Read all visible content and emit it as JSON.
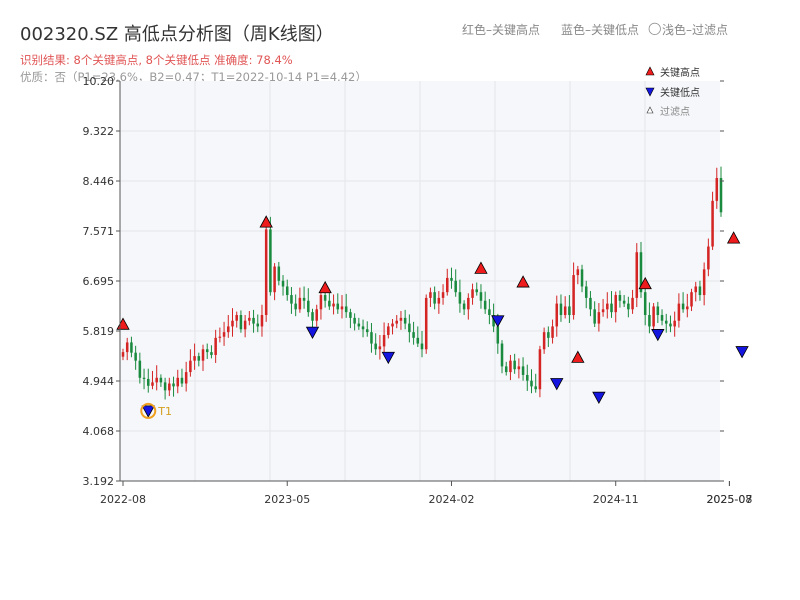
{
  "header": {
    "title": "002320.SZ 高低点分析图（周K线图）",
    "legend_red": "红色–关键高点",
    "legend_blue": "蓝色–关键低点",
    "legend_filtered_symbol": "◯",
    "legend_filtered": "浅色–过滤点",
    "result_line": "识别结果: 8个关键高点, 8个关键低点  准确度: 78.4%",
    "info_line": "优质：否（P1=23.6%，B2=0.47；T1=2022-10-14 P1=4.42）"
  },
  "colors": {
    "up": "#d42424",
    "down": "#1a8a3e",
    "high_marker": "#ee1c1c",
    "low_marker": "#1515e0",
    "t1_ring": "#f0a020",
    "t1_label": "#d4a020"
  },
  "chart_data": {
    "type": "candlestick",
    "ylim": [
      3.192,
      10.2
    ],
    "y_ticks": [
      "3.192",
      "4.068",
      "4.944",
      "5.819",
      "6.695",
      "7.571",
      "8.446",
      "9.322",
      "10.20"
    ],
    "x_ticks": [
      "2022-08",
      "2023-05",
      "2024-02",
      "2024-11",
      "2025-07",
      "2025-08"
    ],
    "legend": [
      "关键高点",
      "关键低点",
      "过滤点"
    ],
    "t1_label": "T1",
    "closes": [
      5.45,
      5.62,
      5.44,
      5.3,
      5.0,
      4.98,
      4.86,
      4.92,
      5.0,
      4.92,
      4.78,
      4.9,
      4.85,
      5.0,
      4.9,
      5.1,
      5.3,
      5.38,
      5.3,
      5.5,
      5.45,
      5.4,
      5.7,
      5.72,
      5.8,
      5.9,
      6.0,
      6.1,
      5.85,
      6.0,
      6.05,
      5.95,
      5.9,
      6.1,
      7.6,
      6.5,
      6.95,
      6.7,
      6.6,
      6.45,
      6.3,
      6.2,
      6.4,
      6.35,
      6.15,
      6.0,
      6.2,
      6.45,
      6.35,
      6.25,
      6.3,
      6.2,
      6.25,
      6.15,
      6.05,
      5.95,
      5.9,
      5.85,
      5.8,
      5.6,
      5.5,
      5.55,
      5.75,
      5.9,
      5.95,
      6.0,
      6.05,
      5.95,
      5.8,
      5.7,
      5.6,
      5.5,
      6.4,
      6.5,
      6.3,
      6.4,
      6.5,
      6.75,
      6.7,
      6.5,
      6.3,
      6.2,
      6.4,
      6.55,
      6.5,
      6.35,
      6.2,
      6.1,
      5.9,
      5.6,
      5.2,
      5.1,
      5.3,
      5.15,
      5.2,
      5.05,
      4.95,
      4.85,
      4.8,
      5.5,
      5.8,
      5.7,
      5.9,
      6.3,
      6.1,
      6.25,
      6.1,
      6.8,
      6.9,
      6.6,
      6.4,
      6.2,
      5.95,
      6.15,
      6.2,
      6.3,
      6.15,
      6.45,
      6.35,
      6.3,
      6.2,
      6.4,
      7.2,
      6.5,
      6.1,
      5.9,
      6.25,
      6.1,
      6.0,
      5.95,
      5.9,
      6.0,
      6.3,
      6.2,
      6.25,
      6.5,
      6.6,
      6.45,
      6.9,
      7.3,
      8.1,
      8.5,
      7.9
    ],
    "key_highs": [
      {
        "x": 0,
        "y": 5.92
      },
      {
        "x": 34,
        "y": 7.71
      },
      {
        "x": 48,
        "y": 6.56
      },
      {
        "x": 85,
        "y": 6.9
      },
      {
        "x": 95,
        "y": 6.66
      },
      {
        "x": 108,
        "y": 5.34
      },
      {
        "x": 124,
        "y": 6.63
      },
      {
        "x": 145,
        "y": 7.43
      }
    ],
    "key_lows": [
      {
        "x": 6,
        "y": 4.42
      },
      {
        "x": 45,
        "y": 5.8
      },
      {
        "x": 63,
        "y": 5.36
      },
      {
        "x": 89,
        "y": 6.0
      },
      {
        "x": 103,
        "y": 4.9
      },
      {
        "x": 113,
        "y": 4.66
      },
      {
        "x": 127,
        "y": 5.76
      },
      {
        "x": 147,
        "y": 5.46
      }
    ]
  }
}
